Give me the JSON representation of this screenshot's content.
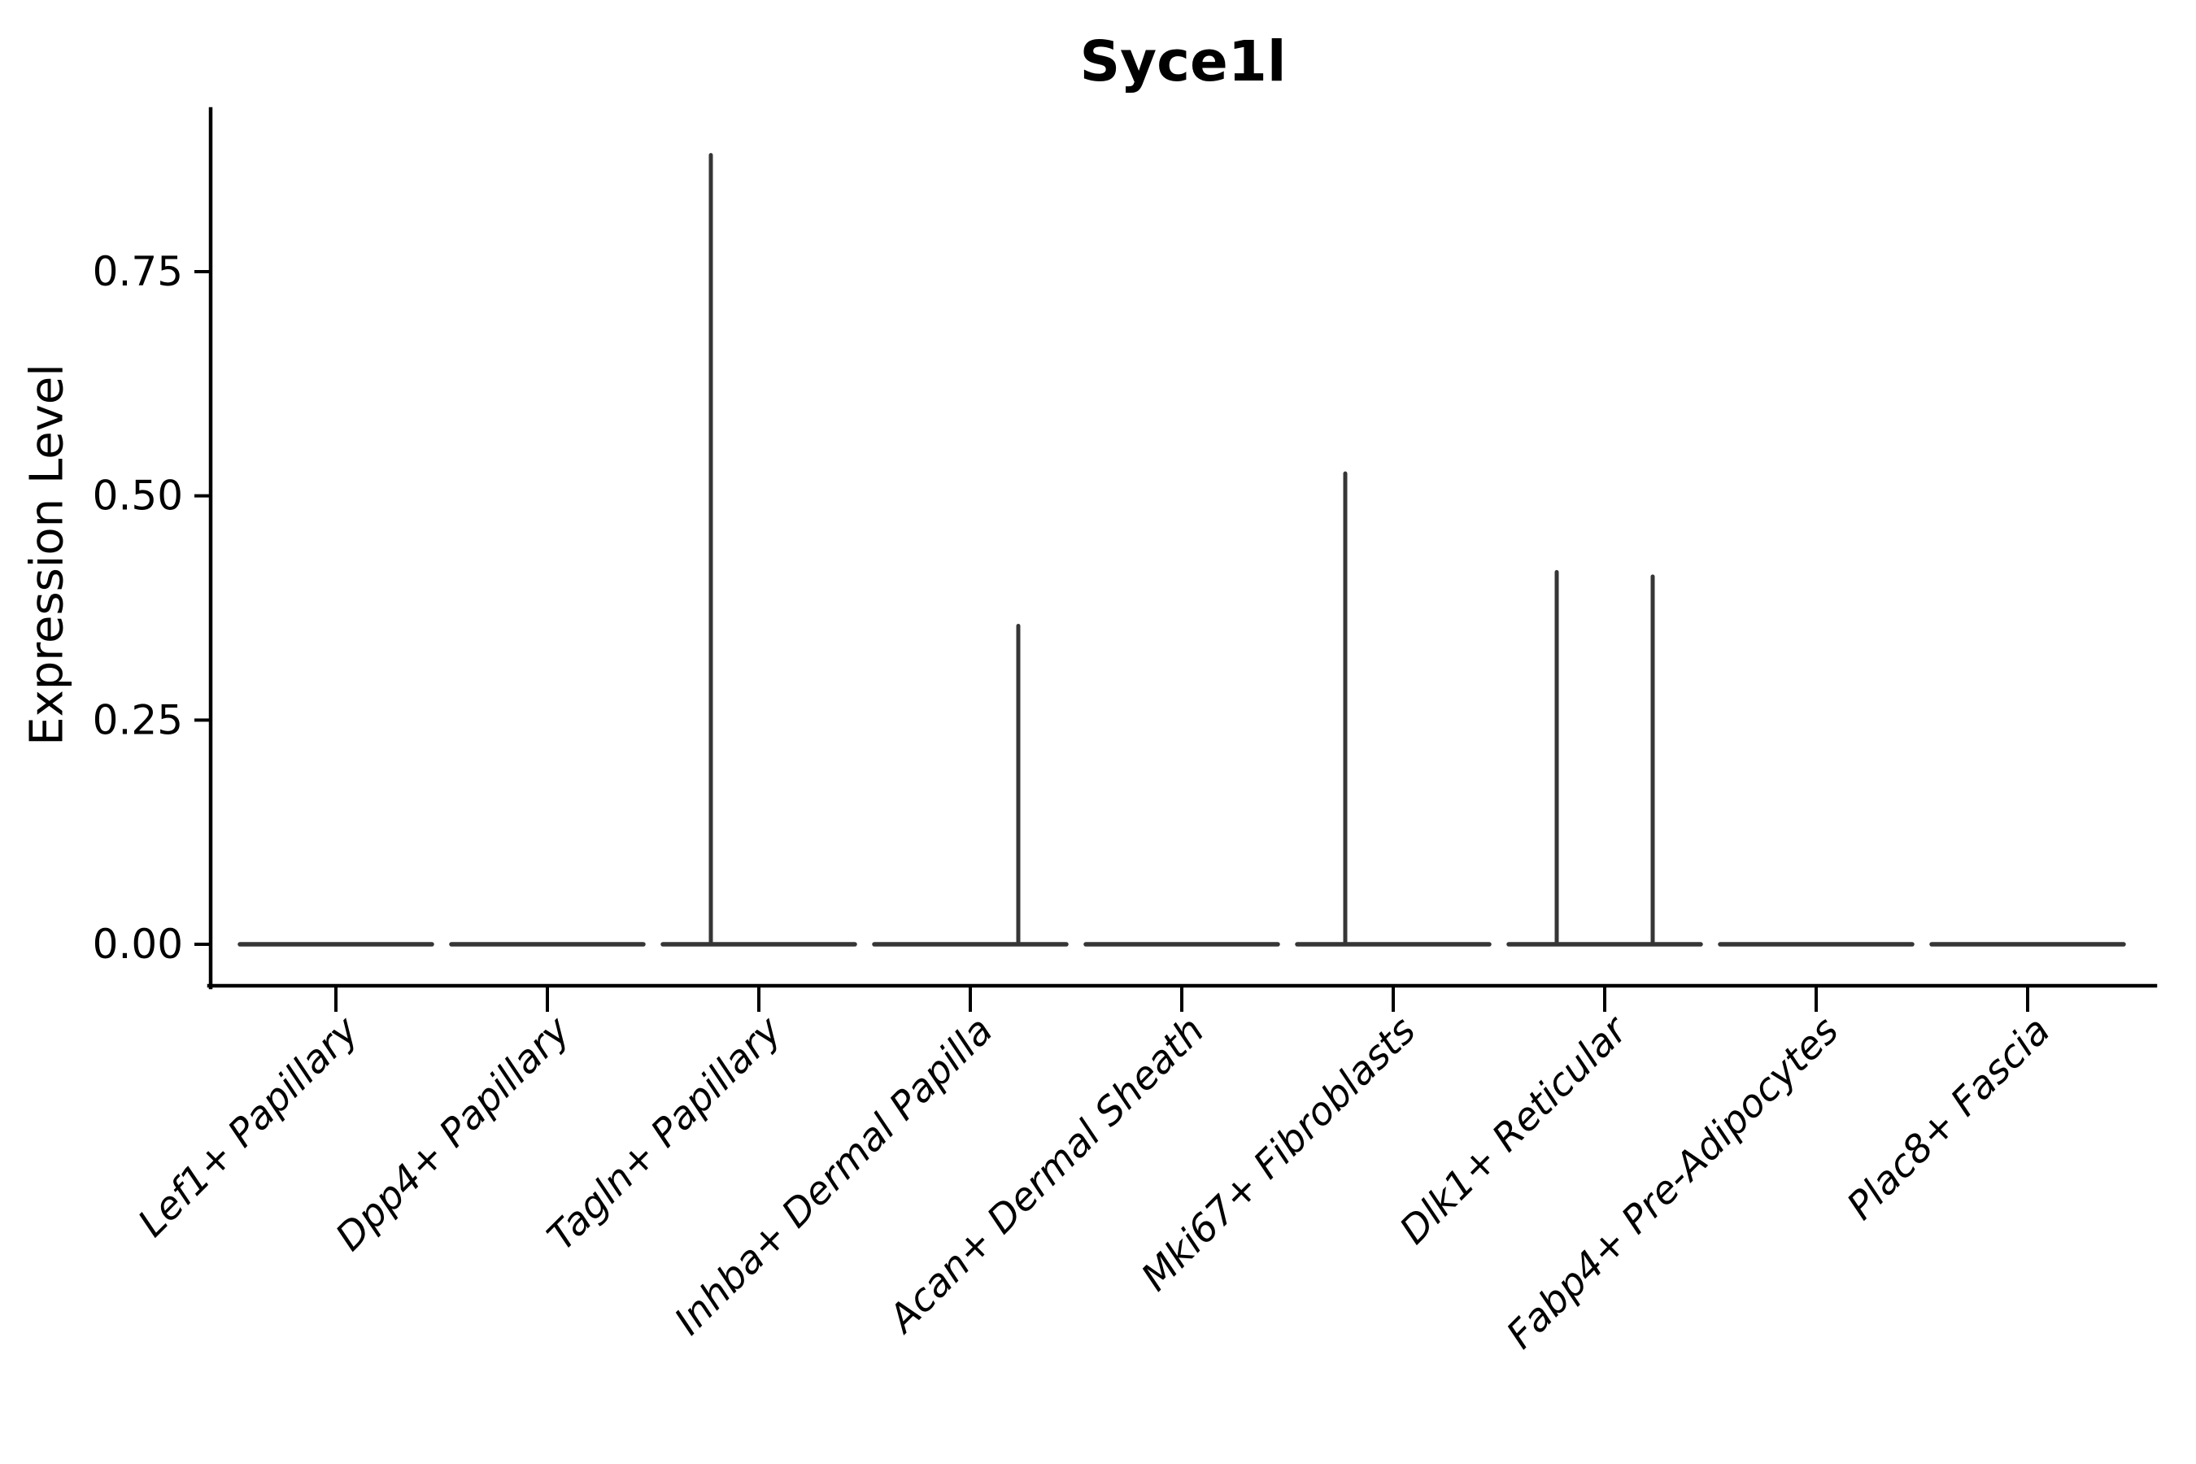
{
  "figure": {
    "title": "Syce1l",
    "ylabel": "Expression Level",
    "background_color": "#ffffff",
    "axis_color": "#000000",
    "violin_color": "#363636"
  },
  "chart_data": {
    "type": "violin",
    "title": "Syce1l",
    "xlabel": "",
    "ylabel": "Expression Level",
    "grid": false,
    "legend_position": "none",
    "x_tick_angle": 45,
    "ytick_labels": [
      "0.00",
      "0.25",
      "0.50",
      "0.75"
    ],
    "ytick_values": [
      0,
      0.25,
      0.5,
      0.75
    ],
    "ylim": [
      -0.046,
      0.931
    ],
    "groups_per_category": 2,
    "categories": [
      "Lef1+ Papillary",
      "Dpp4+ Papillary",
      "Tagln+ Papillary",
      "Inhba+ Dermal Papilla",
      "Acan+ Dermal Sheath",
      "Mki67+ Fibroblasts",
      "Dlk1+ Reticular",
      "Fabp4+ Pre-Adipocytes",
      "Plac8+ Fascia"
    ],
    "violins": [
      {
        "category": "Lef1+ Papillary",
        "baseline_value": 0,
        "spikes": []
      },
      {
        "category": "Dpp4+ Papillary",
        "baseline_value": 0,
        "spikes": []
      },
      {
        "category": "Tagln+ Papillary",
        "baseline_value": 0,
        "spikes": [
          {
            "group": "left",
            "max": 0.88
          }
        ]
      },
      {
        "category": "Inhba+ Dermal Papilla",
        "baseline_value": 0,
        "spikes": [
          {
            "group": "right",
            "max": 0.355
          }
        ]
      },
      {
        "category": "Acan+ Dermal Sheath",
        "baseline_value": 0,
        "spikes": []
      },
      {
        "category": "Mki67+ Fibroblasts",
        "baseline_value": 0,
        "spikes": [
          {
            "group": "left",
            "max": 0.525
          }
        ]
      },
      {
        "category": "Dlk1+ Reticular",
        "baseline_value": 0,
        "spikes": [
          {
            "group": "left",
            "max": 0.415
          },
          {
            "group": "right",
            "max": 0.41
          }
        ]
      },
      {
        "category": "Fabp4+ Pre-Adipocytes",
        "baseline_value": 0,
        "spikes": []
      },
      {
        "category": "Plac8+ Fascia",
        "baseline_value": 0,
        "spikes": []
      }
    ]
  }
}
